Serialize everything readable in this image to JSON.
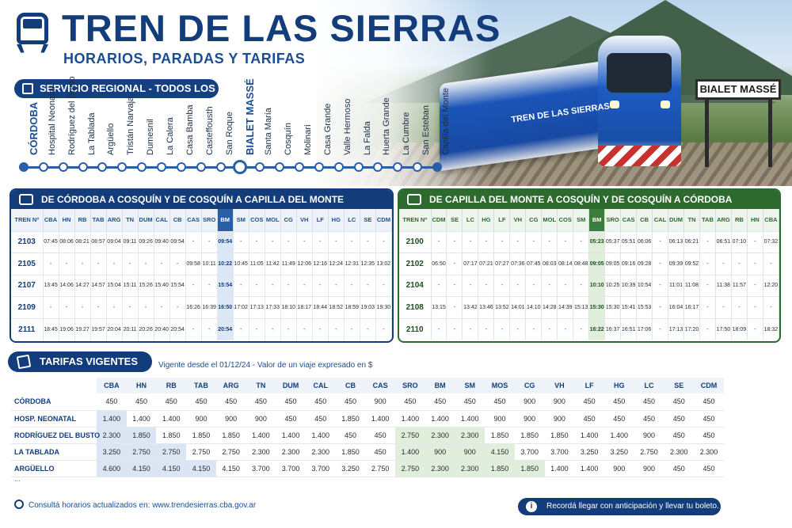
{
  "header": {
    "title": "TREN DE LAS SIERRAS",
    "subtitle": "HORARIOS, PARADAS Y TARIFAS",
    "service": "SERVICIO REGIONAL - TODOS LOS DÍAS",
    "train_text": "TREN DE LAS SIERRAS",
    "station_sign": "BIALET MASSÉ"
  },
  "stations": [
    "CÓRDOBA",
    "Hospital Neonatal",
    "Rodríguez del Busto",
    "La Tablada",
    "Argüello",
    "Tristán Narvaja",
    "Dumesnil",
    "La Calera",
    "Casa Bamba",
    "Casteffousth",
    "San Roque",
    "BIALET MASSÉ",
    "Santa María",
    "Cosquín",
    "Molinari",
    "Casa Grande",
    "Valle Hermoso",
    "La Falda",
    "Huerta Grande",
    "La Cumbre",
    "San Esteban",
    "Capilla del Monte"
  ],
  "outbound": {
    "title": "DE CÓRDOBA A COSQUÍN Y DE COSQUÍN A CAPILLA DEL MONTE",
    "columns": [
      "TREN Nº",
      "CBA",
      "HN",
      "RB",
      "TAB",
      "ARG",
      "TN",
      "DUM",
      "CAL",
      "CB",
      "CAS",
      "SRO",
      "BM",
      "SM",
      "COS",
      "MOL",
      "CG",
      "VH",
      "LF",
      "HG",
      "LC",
      "SE",
      "CDM"
    ],
    "rows": [
      [
        "2103",
        "07:45",
        "08:06",
        "08:21",
        "08:57",
        "09:04",
        "09:11",
        "09:26",
        "09:40",
        "09:54",
        "-",
        "-",
        "09:54",
        "-",
        "-",
        "-",
        "-",
        "-",
        "-",
        "-",
        "-",
        "-",
        "-"
      ],
      [
        "2105",
        "-",
        "-",
        "-",
        "-",
        "-",
        "-",
        "-",
        "-",
        "-",
        "09:58",
        "10:11",
        "10:22",
        "10:45",
        "11:05",
        "11:42",
        "11:49",
        "12:06",
        "12:16",
        "12:24",
        "12:31",
        "12:35",
        "13:02"
      ],
      [
        "2107",
        "13:45",
        "14:06",
        "14:27",
        "14:57",
        "15:04",
        "15:11",
        "15:26",
        "15:40",
        "15:54",
        "-",
        "-",
        "15:54",
        "-",
        "-",
        "-",
        "-",
        "-",
        "-",
        "-",
        "-",
        "-",
        "-"
      ],
      [
        "2109",
        "-",
        "-",
        "-",
        "-",
        "-",
        "-",
        "-",
        "-",
        "-",
        "16:26",
        "16:39",
        "16:50",
        "17:02",
        "17:13",
        "17:33",
        "18:10",
        "18:17",
        "18:44",
        "18:52",
        "18:59",
        "19:03",
        "19:30"
      ],
      [
        "2111",
        "18:45",
        "19:06",
        "19:27",
        "19:57",
        "20:04",
        "20:11",
        "20:26",
        "20:40",
        "20:54",
        "-",
        "-",
        "20:54",
        "-",
        "-",
        "-",
        "-",
        "-",
        "-",
        "-",
        "-",
        "-",
        "-"
      ]
    ]
  },
  "inbound": {
    "title": "DE CAPILLA DEL MONTE A COSQUÍN Y DE COSQUÍN A CÓRDOBA",
    "columns": [
      "TREN Nº",
      "CDM",
      "SE",
      "LC",
      "HG",
      "LF",
      "VH",
      "CG",
      "MOL",
      "COS",
      "SM",
      "BM",
      "SRO",
      "CAS",
      "CB",
      "CAL",
      "DUM",
      "TN",
      "TAB",
      "ARG",
      "RB",
      "HN",
      "CBA"
    ],
    "rows": [
      [
        "2100",
        "-",
        "-",
        "-",
        "-",
        "-",
        "-",
        "-",
        "-",
        "-",
        "-",
        "05:23",
        "05:37",
        "05:51",
        "06:06",
        "-",
        "06:13",
        "06:21",
        "-",
        "06:51",
        "07:10",
        "-",
        "07:32"
      ],
      [
        "2102",
        "06:50",
        "-",
        "07:17",
        "07:21",
        "07:27",
        "07:36",
        "07:45",
        "08:03",
        "08:14",
        "08:48",
        "09:05",
        "09:05",
        "09:16",
        "09:28",
        "-",
        "09:39",
        "09:52",
        "-",
        "-",
        "-",
        "-",
        "-"
      ],
      [
        "2104",
        "-",
        "-",
        "-",
        "-",
        "-",
        "-",
        "-",
        "-",
        "-",
        "-",
        "10:10",
        "10:25",
        "10:39",
        "10:54",
        "-",
        "11:01",
        "11:08",
        "-",
        "11:38",
        "11:57",
        "-",
        "12:20"
      ],
      [
        "2108",
        "13:15",
        "-",
        "13:42",
        "13:46",
        "13:52",
        "14:01",
        "14:10",
        "14:28",
        "14:39",
        "15:13",
        "15:30",
        "15:30",
        "15:41",
        "15:53",
        "-",
        "16:04",
        "16:17",
        "-",
        "-",
        "-",
        "-",
        "-"
      ],
      [
        "2110",
        "-",
        "-",
        "-",
        "-",
        "-",
        "-",
        "-",
        "-",
        "-",
        "-",
        "16:22",
        "16:37",
        "16:51",
        "17:06",
        "-",
        "17:13",
        "17:20",
        "-",
        "17:50",
        "18:09",
        "-",
        "18:32"
      ]
    ]
  },
  "fares": {
    "title": "TARIFAS VIGENTES",
    "note": "Vigente desde el 01/12/24 - Valor de un viaje expresado en $",
    "columns": [
      "CBA",
      "HN",
      "RB",
      "TAB",
      "ARG",
      "TN",
      "DUM",
      "CAL",
      "CB",
      "CAS",
      "SRO",
      "BM",
      "SM",
      "MOS",
      "CG",
      "VH",
      "LF",
      "HG",
      "LC",
      "SE",
      "CDM"
    ],
    "rows": [
      {
        "origin": "CÓRDOBA",
        "values": [
          "450",
          "450",
          "450",
          "450",
          "450",
          "450",
          "450",
          "450",
          "450",
          "900",
          "450",
          "450",
          "450",
          "450",
          "900",
          "900",
          "450",
          "450",
          "450",
          "450",
          "450"
        ]
      },
      {
        "origin": "HOSP. NEONATAL",
        "values": [
          "1.400",
          "1.400",
          "1.400",
          "900",
          "900",
          "900",
          "450",
          "450",
          "1.850",
          "1.400",
          "1.400",
          "1.400",
          "1.400",
          "900",
          "900",
          "900",
          "450",
          "450",
          "450",
          "450",
          "450"
        ]
      },
      {
        "origin": "RODRÍGUEZ DEL BUSTO",
        "values": [
          "2.300",
          "1.850",
          "1.850",
          "1.850",
          "1.850",
          "1.400",
          "1.400",
          "1.400",
          "450",
          "450",
          "2.750",
          "2.300",
          "2.300",
          "1.850",
          "1.850",
          "1.850",
          "1.400",
          "1.400",
          "900",
          "450",
          "450"
        ]
      },
      {
        "origin": "LA TABLADA",
        "values": [
          "3.250",
          "2.750",
          "2.750",
          "2.750",
          "2.750",
          "2.300",
          "2.300",
          "2.300",
          "1.850",
          "450",
          "1.400",
          "900",
          "900",
          "4.150",
          "3.700",
          "3.700",
          "3.250",
          "3.250",
          "2.750",
          "2.300",
          "2.300"
        ]
      },
      {
        "origin": "ARGÜELLO",
        "values": [
          "4.600",
          "4.150",
          "4.150",
          "4.150",
          "4.150",
          "3.700",
          "3.700",
          "3.700",
          "3.250",
          "2.750",
          "2.750",
          "2.300",
          "2.300",
          "1.850",
          "1.850",
          "1.400",
          "1.400",
          "900",
          "900",
          "450",
          "450"
        ]
      }
    ],
    "more": "..."
  },
  "footer": {
    "website": "Consultá horarios actualizados en: www.trendesierras.cba.gov.ar",
    "reminder": "Recordá llegar con anticipación y llevar tu boleto.",
    "info_glyph": "i"
  },
  "colors": {
    "navy": "#133c7a",
    "green": "#2c6a2e",
    "highlight_blue": "#dde8f6",
    "highlight_green": "#e1eedc"
  }
}
